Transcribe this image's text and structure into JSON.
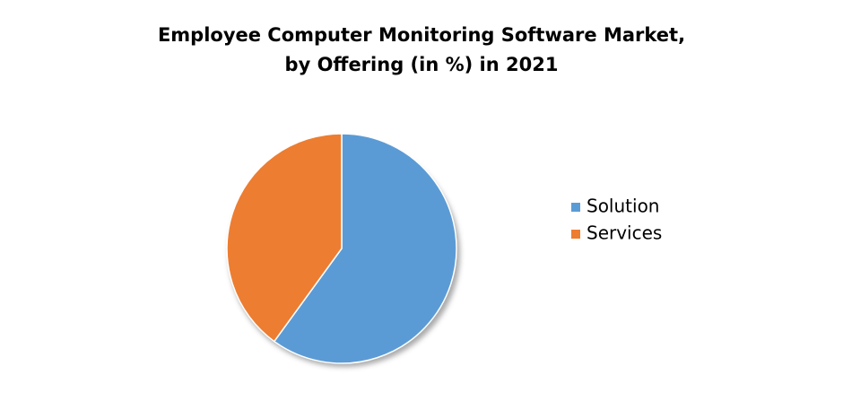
{
  "chart_data": {
    "type": "pie",
    "title": [
      "Employee Computer Monitoring Software Market,",
      "by Offering (in %) in 2021"
    ],
    "categories": [
      "Solution",
      "Services"
    ],
    "values": [
      60,
      40
    ],
    "colors": [
      "#5b9bd5",
      "#ed7d31"
    ],
    "legend": "right"
  }
}
